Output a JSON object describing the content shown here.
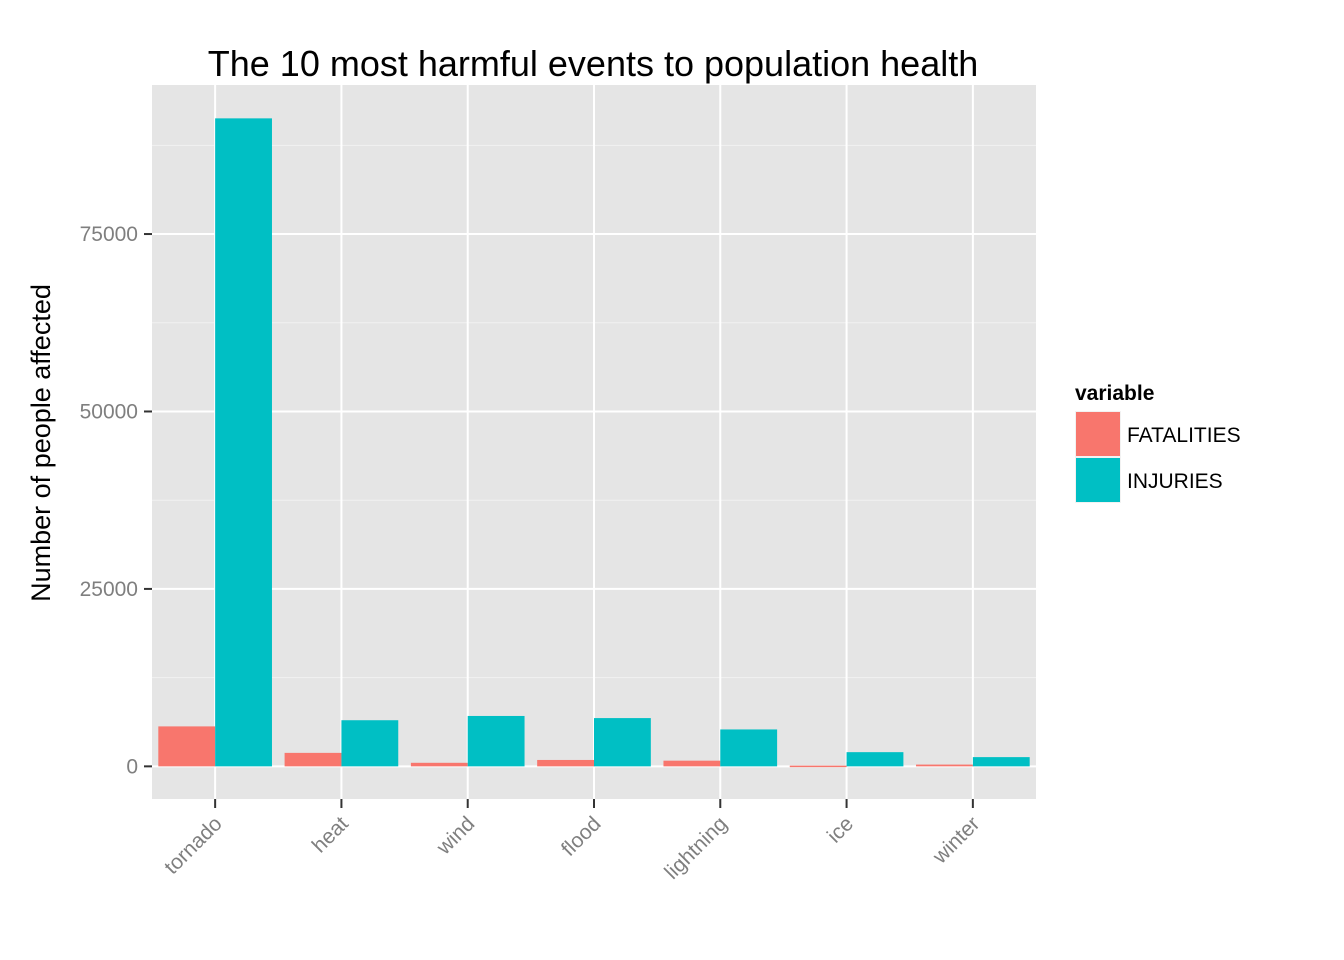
{
  "chart_data": {
    "type": "bar",
    "title": "The 10 most harmful events to population health",
    "xlabel": "",
    "ylabel": "Number of people affected",
    "categories": [
      "tornado",
      "heat",
      "wind",
      "flood",
      "lightning",
      "ice",
      "winter"
    ],
    "series": [
      {
        "name": "FATALITIES",
        "color": "#F8766D",
        "values": [
          5630,
          1900,
          500,
          900,
          800,
          100,
          250
        ]
      },
      {
        "name": "INJURIES",
        "color": "#00BFC4",
        "values": [
          91300,
          6500,
          7100,
          6800,
          5200,
          2000,
          1300
        ]
      }
    ],
    "ylim": [
      -4600,
      96000
    ],
    "yticks": [
      0,
      25000,
      50000,
      75000
    ],
    "ytick_labels": [
      "0",
      "25000",
      "50000",
      "75000"
    ],
    "grid": true,
    "legend": {
      "title": "variable",
      "position": "right"
    },
    "colors": {
      "panel": "#E5E5E5",
      "grid": "#FFFFFF",
      "tick_text": "#7F7F7F"
    }
  }
}
